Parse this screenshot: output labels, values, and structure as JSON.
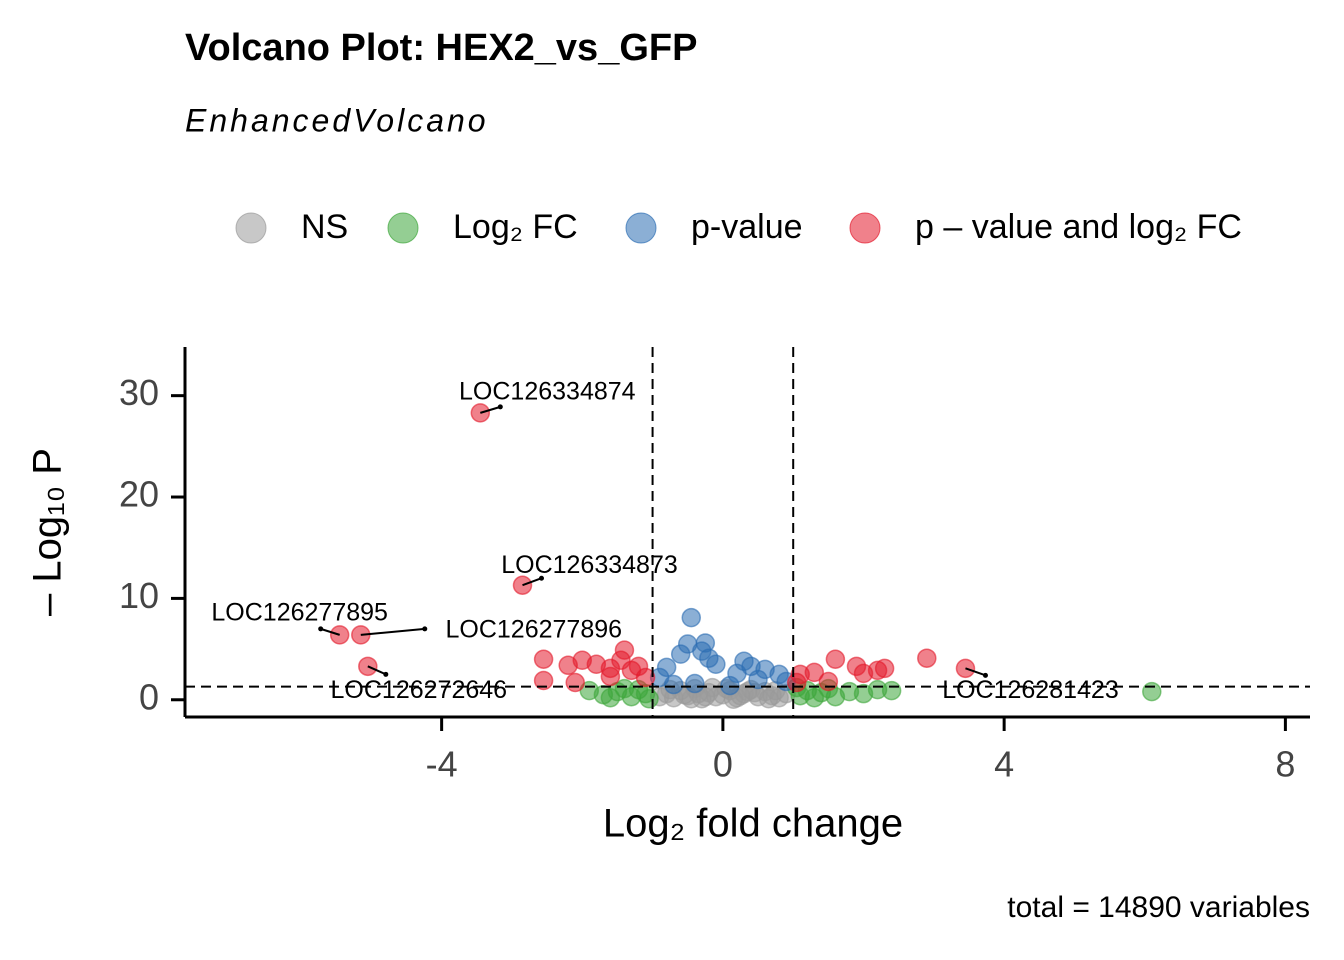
{
  "chart_data": {
    "type": "scatter",
    "title": "Volcano Plot: HEX2_vs_GFP",
    "subtitle": "EnhancedVolcano",
    "caption": "total = 14890 variables",
    "x_label": "Log₂ fold change",
    "y_label": "– Log₁₀ P",
    "xlim": [
      -7.65,
      8.35
    ],
    "ylim": [
      -1.7,
      34.8
    ],
    "xticks": [
      -4,
      0,
      4,
      8
    ],
    "yticks": [
      0,
      10,
      20,
      30
    ],
    "vlines": [
      -1,
      1
    ],
    "hline": 1.3,
    "legend_position": "top",
    "series": [
      {
        "name": "NS",
        "color": "#9a9a9a",
        "x": [
          -0.9,
          -0.8,
          -0.7,
          -0.6,
          -0.5,
          -0.4,
          -0.3,
          -0.2,
          -0.1,
          0,
          0.1,
          0.2,
          0.3,
          0.4,
          0.5,
          0.6,
          0.7,
          0.8,
          0.9,
          -0.75,
          -0.45,
          -0.15,
          0.15,
          0.45,
          0.75,
          -0.55,
          -0.25,
          0.05,
          0.35,
          0.65,
          -0.35,
          0.25
        ],
        "values": [
          0.3,
          0.6,
          0.2,
          0.9,
          0.4,
          1.1,
          0.1,
          0.7,
          0.3,
          0.5,
          0.9,
          0.2,
          0.6,
          1.0,
          0.3,
          0.8,
          0.4,
          0.2,
          0.6,
          1.0,
          0.1,
          1.2,
          0.05,
          0.7,
          0.9,
          0.5,
          0.3,
          1.1,
          0.8,
          0.1,
          0.6,
          0.4
        ]
      },
      {
        "name": "Log₂ FC",
        "color": "#3da63a",
        "x": [
          -1.9,
          -1.7,
          -1.5,
          -1.3,
          -1.2,
          -1.1,
          -1.6,
          -1.4,
          1.1,
          1.2,
          1.4,
          1.6,
          1.8,
          2.0,
          2.2,
          2.4,
          1.3,
          1.5,
          6.1,
          -1.05,
          1.05
        ],
        "values": [
          0.9,
          0.5,
          0.8,
          0.3,
          1.0,
          0.6,
          0.2,
          1.1,
          0.4,
          0.9,
          0.7,
          0.3,
          0.8,
          0.6,
          1.0,
          0.9,
          0.2,
          1.1,
          0.8,
          0.1,
          1.2
        ]
      },
      {
        "name": "p-value",
        "color": "#2c6db3",
        "x": [
          -0.45,
          -0.5,
          -0.25,
          -0.6,
          -0.3,
          0.3,
          -0.8,
          0.6,
          -0.1,
          0.8,
          -0.9,
          0.2,
          0.5,
          -0.4,
          0.9,
          -0.7,
          0.1,
          0.4,
          -0.2
        ],
        "values": [
          8.1,
          5.5,
          5.6,
          4.5,
          4.8,
          3.8,
          3.2,
          3.0,
          3.5,
          2.5,
          2.2,
          2.6,
          2.0,
          1.6,
          1.8,
          1.5,
          1.4,
          3.3,
          4.1
        ]
      },
      {
        "name": "p – value and log₂ FC",
        "color": "#e31a2c",
        "x": [
          -3.45,
          -2.85,
          -5.45,
          -5.15,
          -5.05,
          3.45,
          -2.55,
          -2.55,
          -2.2,
          -2.0,
          -1.8,
          -1.6,
          -1.4,
          -1.45,
          -1.2,
          -1.3,
          -2.1,
          -1.1,
          -1.6,
          1.1,
          1.3,
          1.6,
          1.9,
          2.2,
          2.3,
          2.9,
          1.05,
          1.5,
          2.0
        ],
        "values": [
          28.3,
          11.3,
          6.4,
          6.4,
          3.3,
          3.1,
          4.0,
          1.9,
          3.4,
          3.9,
          3.5,
          3.1,
          4.9,
          3.9,
          3.3,
          2.9,
          1.7,
          2.2,
          2.3,
          2.5,
          2.7,
          4.0,
          3.3,
          2.9,
          3.1,
          4.1,
          1.7,
          1.8,
          2.6
        ]
      }
    ],
    "annotations": [
      {
        "text": "LOC126334874",
        "x": -3.45,
        "y": 28.3
      },
      {
        "text": "LOC126334873",
        "x": -2.85,
        "y": 11.3
      },
      {
        "text": "LOC126277895",
        "x": -5.45,
        "y": 6.4
      },
      {
        "text": "LOC126277896",
        "x": -5.15,
        "y": 6.4
      },
      {
        "text": "LOC126272646",
        "x": -5.05,
        "y": 3.3
      },
      {
        "text": "LOC126281423",
        "x": 3.45,
        "y": 3.1
      }
    ]
  }
}
